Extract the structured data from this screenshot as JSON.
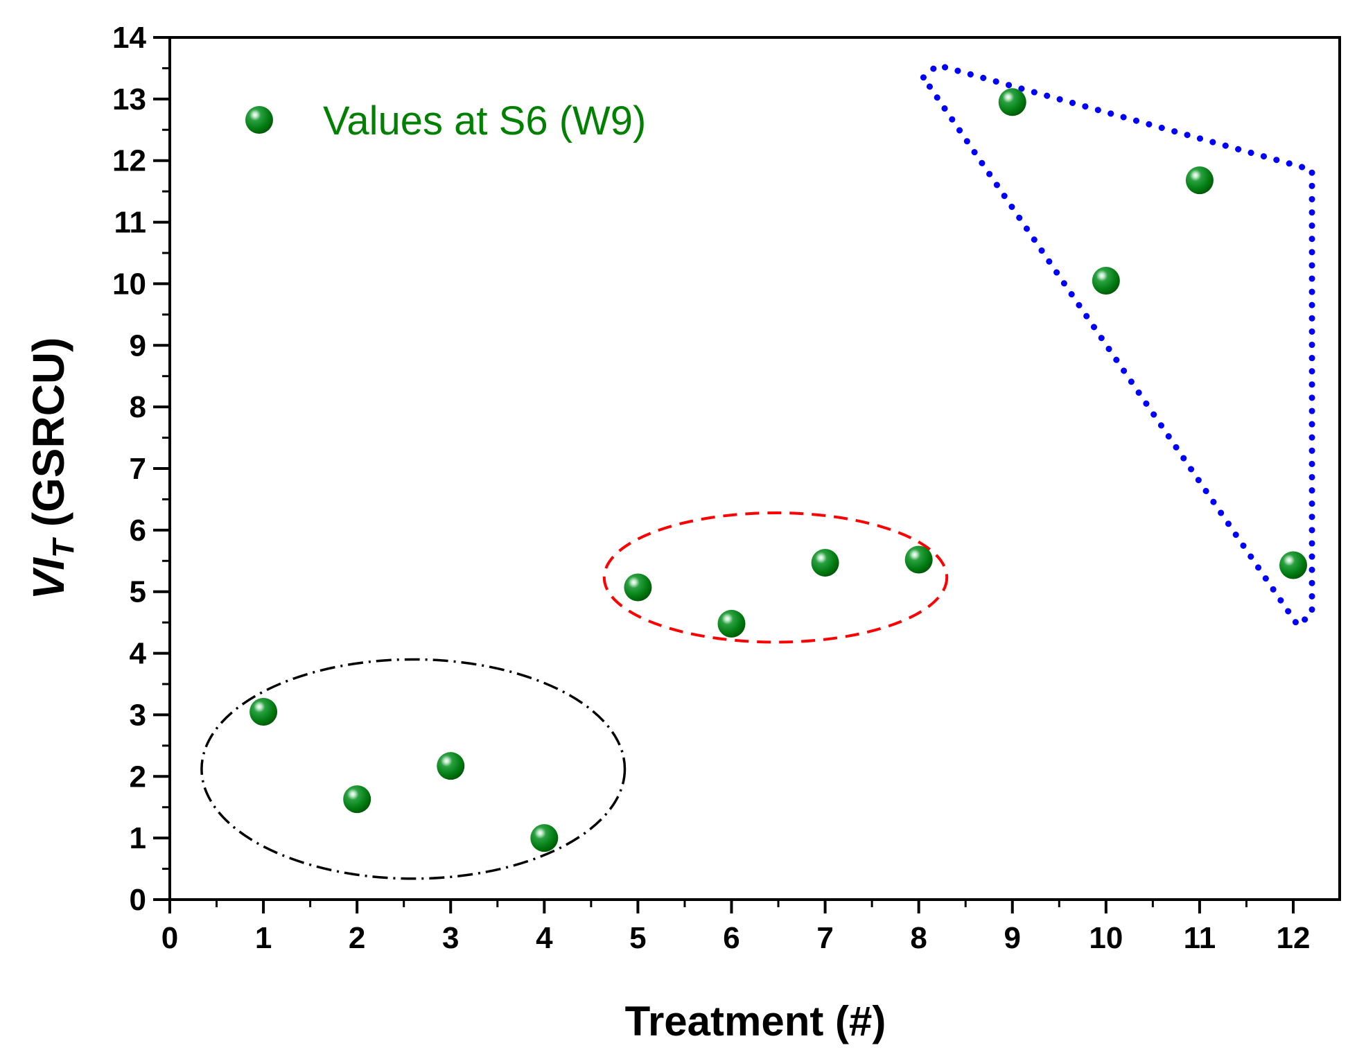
{
  "chart_data": {
    "type": "scatter",
    "title": "",
    "xlabel": "Treatment (#)",
    "ylabel_main": "VI",
    "ylabel_sub": "T",
    "ylabel_units": " (GSRCU)",
    "xlim": [
      0,
      12.5
    ],
    "ylim": [
      0,
      14
    ],
    "x_ticks": [
      "0",
      "1",
      "2",
      "3",
      "4",
      "5",
      "6",
      "7",
      "8",
      "9",
      "10",
      "11",
      "12"
    ],
    "y_ticks": [
      "0",
      "1",
      "2",
      "3",
      "4",
      "5",
      "6",
      "7",
      "8",
      "9",
      "10",
      "11",
      "12",
      "13",
      "14"
    ],
    "grid": false,
    "legend_position": "top-left",
    "series": [
      {
        "name": "Values at S6 (W9)",
        "color": "#008000",
        "x": [
          1,
          2,
          3,
          4,
          5,
          6,
          7,
          8,
          9,
          10,
          11,
          12
        ],
        "y": [
          3.05,
          1.63,
          2.17,
          1.0,
          5.07,
          4.48,
          5.47,
          5.52,
          12.95,
          10.05,
          11.68,
          5.43
        ]
      }
    ],
    "annotations": [
      {
        "shape": "ellipse",
        "style": "dash-dot",
        "color": "#000000",
        "groups_treatments": [
          1,
          2,
          3,
          4
        ]
      },
      {
        "shape": "ellipse",
        "style": "dashed",
        "color": "#ff0000",
        "groups_treatments": [
          5,
          6,
          7,
          8
        ]
      },
      {
        "shape": "triangle",
        "style": "dotted",
        "color": "#0000ff",
        "groups_treatments": [
          9,
          10,
          11,
          12
        ]
      }
    ]
  }
}
